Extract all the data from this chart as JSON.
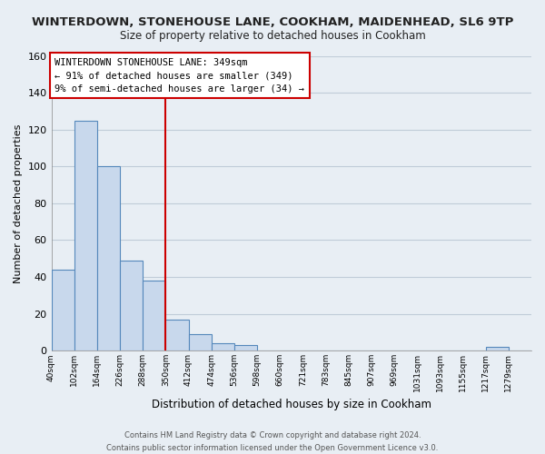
{
  "title": "WINTERDOWN, STONEHOUSE LANE, COOKHAM, MAIDENHEAD, SL6 9TP",
  "subtitle": "Size of property relative to detached houses in Cookham",
  "xlabel": "Distribution of detached houses by size in Cookham",
  "ylabel": "Number of detached properties",
  "bin_labels": [
    "40sqm",
    "102sqm",
    "164sqm",
    "226sqm",
    "288sqm",
    "350sqm",
    "412sqm",
    "474sqm",
    "536sqm",
    "598sqm",
    "660sqm",
    "721sqm",
    "783sqm",
    "845sqm",
    "907sqm",
    "969sqm",
    "1031sqm",
    "1093sqm",
    "1155sqm",
    "1217sqm",
    "1279sqm"
  ],
  "bar_heights": [
    44,
    125,
    100,
    49,
    38,
    17,
    9,
    4,
    3,
    0,
    0,
    0,
    0,
    0,
    0,
    0,
    0,
    0,
    0,
    2,
    0
  ],
  "bar_color": "#c8d8ec",
  "bar_edge_color": "#5588bb",
  "vline_x_index": 5,
  "vline_color": "#cc0000",
  "ylim": [
    0,
    160
  ],
  "yticks": [
    0,
    20,
    40,
    60,
    80,
    100,
    120,
    140,
    160
  ],
  "annotation_title": "WINTERDOWN STONEHOUSE LANE: 349sqm",
  "annotation_line1": "← 91% of detached houses are smaller (349)",
  "annotation_line2": "9% of semi-detached houses are larger (34) →",
  "annotation_box_color": "#ffffff",
  "annotation_box_edge": "#cc0000",
  "footer_line1": "Contains HM Land Registry data © Crown copyright and database right 2024.",
  "footer_line2": "Contains public sector information licensed under the Open Government Licence v3.0.",
  "bg_color": "#e8eef4",
  "plot_bg_color": "#e8eef4",
  "grid_color": "#c0ccd8"
}
